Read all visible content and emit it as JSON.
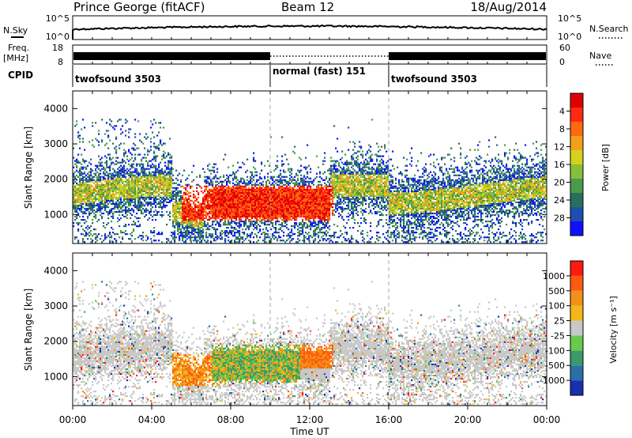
{
  "header": {
    "station": "Prince George (fitACF)",
    "beam": "Beam 12",
    "date": "18/Aug/2014"
  },
  "noise_panel": {
    "left_label": "N.Sky",
    "right_label": "N.Search",
    "left_ticks": [
      "10^5",
      "10^0"
    ],
    "right_ticks": [
      "10^5",
      "10^0"
    ]
  },
  "freq_panel": {
    "left_label_1": "Freq.",
    "left_label_2": "[MHz]",
    "right_label": "Nave",
    "left_ticks": [
      "18",
      "8"
    ],
    "right_ticks": [
      "60",
      "0"
    ]
  },
  "cpid_panel": {
    "label": "CPID",
    "segments": [
      {
        "name": "twofsound 3503",
        "start_h": 0,
        "end_h": 10
      },
      {
        "name": "normal (fast) 151",
        "start_h": 10,
        "end_h": 16
      },
      {
        "name": "twofsound 3503",
        "start_h": 16,
        "end_h": 24
      }
    ]
  },
  "x_axis": {
    "label": "Time UT",
    "ticks": [
      "00:00",
      "04:00",
      "08:00",
      "12:00",
      "16:00",
      "20:00",
      "00:00"
    ]
  },
  "chart_data": [
    {
      "type": "heatmap",
      "title": "",
      "xlabel": "Time UT",
      "ylabel": "Slant Range [km]",
      "y_ticks": [
        "1000",
        "2000",
        "3000",
        "4000"
      ],
      "xlim": [
        0,
        24
      ],
      "ylim": [
        180,
        4500
      ],
      "colorbar": {
        "label": "Power [dB]",
        "ticks": [
          "4",
          "8",
          "12",
          "16",
          "20",
          "24",
          "28"
        ],
        "colors": [
          "#1010ff",
          "#1e4fae",
          "#2a6f5a",
          "#4a9a4a",
          "#86c03a",
          "#d6d21c",
          "#f2a01a",
          "#ff6a10",
          "#ff2a10",
          "#e00000"
        ]
      }
    },
    {
      "type": "heatmap",
      "title": "",
      "xlabel": "Time UT",
      "ylabel": "Slant Range [km]",
      "y_ticks": [
        "1000",
        "2000",
        "3000",
        "4000"
      ],
      "xlim": [
        0,
        24
      ],
      "ylim": [
        180,
        4500
      ],
      "colorbar": {
        "label": "Velocity [m s⁻¹]",
        "ticks": [
          "1000",
          "500",
          "100",
          "25",
          "-25",
          "-100",
          "-500",
          "-1000"
        ],
        "colors": [
          "#1a2fb0",
          "#2a6fa8",
          "#3a9a6a",
          "#6ac84a",
          "#c8c8c8",
          "#f2b81a",
          "#f29018",
          "#ff5a10",
          "#ff1a10"
        ]
      }
    }
  ]
}
